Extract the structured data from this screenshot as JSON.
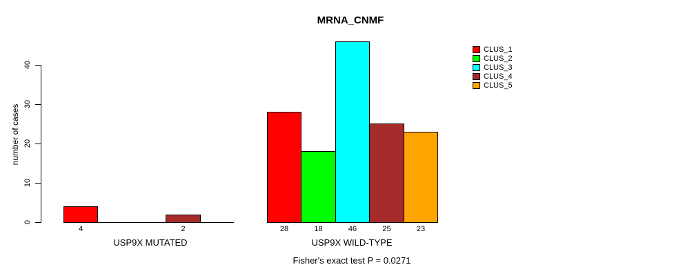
{
  "chart_data": {
    "type": "bar",
    "title": "MRNA_CNMF",
    "ylabel": "number of cases",
    "ylim": [
      0,
      46
    ],
    "yticks": [
      0,
      10,
      20,
      30,
      40
    ],
    "grid": false,
    "legend_position": "right",
    "categories": [
      "USP9X MUTATED",
      "USP9X WILD-TYPE"
    ],
    "series": [
      {
        "name": "CLUS_1",
        "color": "#FF0000",
        "values": [
          4,
          28
        ]
      },
      {
        "name": "CLUS_2",
        "color": "#00FF00",
        "values": [
          0,
          18
        ]
      },
      {
        "name": "CLUS_3",
        "color": "#00FFFF",
        "values": [
          0,
          46
        ]
      },
      {
        "name": "CLUS_4",
        "color": "#A52A2A",
        "values": [
          2,
          25
        ]
      },
      {
        "name": "CLUS_5",
        "color": "#FFA500",
        "values": [
          0,
          23
        ]
      }
    ],
    "visible_bar_value_labels": {
      "USP9X MUTATED": [
        "4",
        "2"
      ],
      "USP9X WILD-TYPE": [
        "28",
        "18",
        "46",
        "25",
        "23"
      ]
    },
    "annotation": "Fisher's exact test P = 0.0271",
    "axis_color": "#000000",
    "background_color": "#FFFFFF"
  }
}
